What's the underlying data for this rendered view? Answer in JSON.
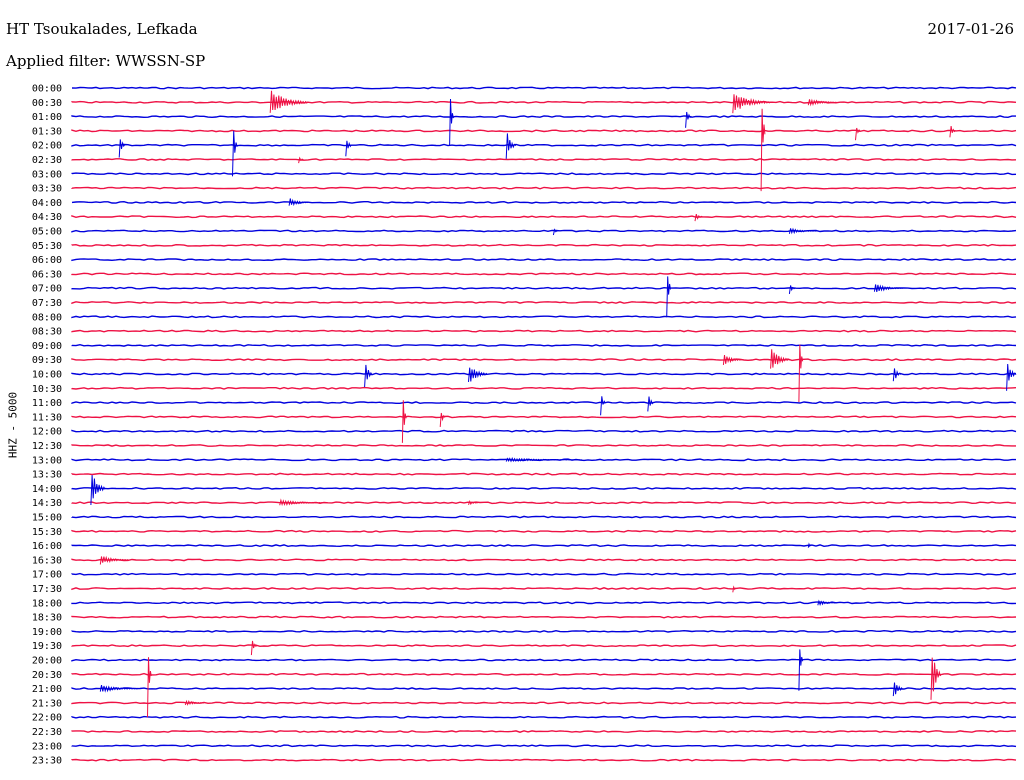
{
  "header": {
    "station": "HT Tsoukalades, Lefkada",
    "date": "2017-01-26",
    "filter": "Applied filter: WWSSN-SP"
  },
  "channel_label": "HHZ - 5000",
  "colors": {
    "blue": "#0000dd",
    "red": "#ee1144"
  },
  "chart_data": {
    "type": "line",
    "rows": [
      {
        "label": "00:00",
        "color": "blue"
      },
      {
        "label": "00:30",
        "color": "red"
      },
      {
        "label": "01:00",
        "color": "blue"
      },
      {
        "label": "01:30",
        "color": "red"
      },
      {
        "label": "02:00",
        "color": "blue"
      },
      {
        "label": "02:30",
        "color": "red"
      },
      {
        "label": "03:00",
        "color": "blue"
      },
      {
        "label": "03:30",
        "color": "red"
      },
      {
        "label": "04:00",
        "color": "blue"
      },
      {
        "label": "04:30",
        "color": "red"
      },
      {
        "label": "05:00",
        "color": "blue"
      },
      {
        "label": "05:30",
        "color": "red"
      },
      {
        "label": "06:00",
        "color": "blue"
      },
      {
        "label": "06:30",
        "color": "red"
      },
      {
        "label": "07:00",
        "color": "blue"
      },
      {
        "label": "07:30",
        "color": "red"
      },
      {
        "label": "08:00",
        "color": "blue"
      },
      {
        "label": "08:30",
        "color": "red"
      },
      {
        "label": "09:00",
        "color": "blue"
      },
      {
        "label": "09:30",
        "color": "red"
      },
      {
        "label": "10:00",
        "color": "blue"
      },
      {
        "label": "10:30",
        "color": "red"
      },
      {
        "label": "11:00",
        "color": "blue"
      },
      {
        "label": "11:30",
        "color": "red"
      },
      {
        "label": "12:00",
        "color": "blue"
      },
      {
        "label": "12:30",
        "color": "red"
      },
      {
        "label": "13:00",
        "color": "blue"
      },
      {
        "label": "13:30",
        "color": "red"
      },
      {
        "label": "14:00",
        "color": "blue"
      },
      {
        "label": "14:30",
        "color": "red"
      },
      {
        "label": "15:00",
        "color": "blue"
      },
      {
        "label": "15:30",
        "color": "red"
      },
      {
        "label": "16:00",
        "color": "blue"
      },
      {
        "label": "16:30",
        "color": "red"
      },
      {
        "label": "17:00",
        "color": "blue"
      },
      {
        "label": "17:30",
        "color": "red"
      },
      {
        "label": "18:00",
        "color": "blue"
      },
      {
        "label": "18:30",
        "color": "red"
      },
      {
        "label": "19:00",
        "color": "blue"
      },
      {
        "label": "19:30",
        "color": "red"
      },
      {
        "label": "20:00",
        "color": "blue"
      },
      {
        "label": "20:30",
        "color": "red"
      },
      {
        "label": "21:00",
        "color": "blue"
      },
      {
        "label": "21:30",
        "color": "red"
      },
      {
        "label": "22:00",
        "color": "blue"
      },
      {
        "label": "22:30",
        "color": "red"
      },
      {
        "label": "23:00",
        "color": "blue"
      },
      {
        "label": "23:30",
        "color": "red"
      }
    ],
    "events": [
      {
        "row": 1,
        "t": 0.21,
        "amp": 14,
        "dur": 0.04
      },
      {
        "row": 1,
        "t": 0.7,
        "amp": 12,
        "dur": 0.04
      },
      {
        "row": 1,
        "t": 0.78,
        "amp": 4,
        "dur": 0.03
      },
      {
        "row": 2,
        "t": 0.4,
        "amp": 45,
        "dur": 0.004
      },
      {
        "row": 2,
        "t": 0.65,
        "amp": 12,
        "dur": 0.006
      },
      {
        "row": 3,
        "t": 0.73,
        "amp": 70,
        "dur": 0.004
      },
      {
        "row": 3,
        "t": 0.83,
        "amp": 10,
        "dur": 0.005
      },
      {
        "row": 3,
        "t": 0.93,
        "amp": 9,
        "dur": 0.006
      },
      {
        "row": 4,
        "t": 0.05,
        "amp": 14,
        "dur": 0.006
      },
      {
        "row": 4,
        "t": 0.17,
        "amp": 38,
        "dur": 0.005
      },
      {
        "row": 4,
        "t": 0.29,
        "amp": 12,
        "dur": 0.006
      },
      {
        "row": 4,
        "t": 0.46,
        "amp": 18,
        "dur": 0.01
      },
      {
        "row": 5,
        "t": 0.24,
        "amp": 5,
        "dur": 0.005
      },
      {
        "row": 8,
        "t": 0.23,
        "amp": 5,
        "dur": 0.02
      },
      {
        "row": 9,
        "t": 0.66,
        "amp": 5,
        "dur": 0.008
      },
      {
        "row": 10,
        "t": 0.51,
        "amp": 4,
        "dur": 0.005
      },
      {
        "row": 10,
        "t": 0.76,
        "amp": 3,
        "dur": 0.03
      },
      {
        "row": 14,
        "t": 0.63,
        "amp": 40,
        "dur": 0.004
      },
      {
        "row": 14,
        "t": 0.76,
        "amp": 6,
        "dur": 0.006
      },
      {
        "row": 14,
        "t": 0.85,
        "amp": 5,
        "dur": 0.03
      },
      {
        "row": 19,
        "t": 0.69,
        "amp": 6,
        "dur": 0.02
      },
      {
        "row": 19,
        "t": 0.74,
        "amp": 14,
        "dur": 0.02
      },
      {
        "row": 19,
        "t": 0.77,
        "amp": 44,
        "dur": 0.004
      },
      {
        "row": 20,
        "t": 0.31,
        "amp": 18,
        "dur": 0.008
      },
      {
        "row": 20,
        "t": 0.42,
        "amp": 12,
        "dur": 0.02
      },
      {
        "row": 20,
        "t": 0.87,
        "amp": 12,
        "dur": 0.008
      },
      {
        "row": 20,
        "t": 0.99,
        "amp": 18,
        "dur": 0.01
      },
      {
        "row": 22,
        "t": 0.56,
        "amp": 14,
        "dur": 0.005
      },
      {
        "row": 22,
        "t": 0.61,
        "amp": 12,
        "dur": 0.006
      },
      {
        "row": 23,
        "t": 0.35,
        "amp": 40,
        "dur": 0.004
      },
      {
        "row": 23,
        "t": 0.39,
        "amp": 12,
        "dur": 0.005
      },
      {
        "row": 26,
        "t": 0.46,
        "amp": 2,
        "dur": 0.08
      },
      {
        "row": 28,
        "t": 0.02,
        "amp": 22,
        "dur": 0.015
      },
      {
        "row": 29,
        "t": 0.22,
        "amp": 3,
        "dur": 0.05
      },
      {
        "row": 29,
        "t": 0.42,
        "amp": 3,
        "dur": 0.01
      },
      {
        "row": 32,
        "t": 0.78,
        "amp": 3,
        "dur": 0.003
      },
      {
        "row": 33,
        "t": 0.03,
        "amp": 5,
        "dur": 0.03
      },
      {
        "row": 35,
        "t": 0.7,
        "amp": 4,
        "dur": 0.004
      },
      {
        "row": 36,
        "t": 0.79,
        "amp": 3,
        "dur": 0.02
      },
      {
        "row": 39,
        "t": 0.19,
        "amp": 10,
        "dur": 0.006
      },
      {
        "row": 40,
        "t": 0.77,
        "amp": 32,
        "dur": 0.004
      },
      {
        "row": 41,
        "t": 0.08,
        "amp": 48,
        "dur": 0.004
      },
      {
        "row": 42,
        "t": 0.03,
        "amp": 4,
        "dur": 0.04
      },
      {
        "row": 42,
        "t": 0.87,
        "amp": 12,
        "dur": 0.01
      },
      {
        "row": 41,
        "t": 0.91,
        "amp": 38,
        "dur": 0.01
      },
      {
        "row": 43,
        "t": 0.12,
        "amp": 3,
        "dur": 0.02
      }
    ]
  }
}
